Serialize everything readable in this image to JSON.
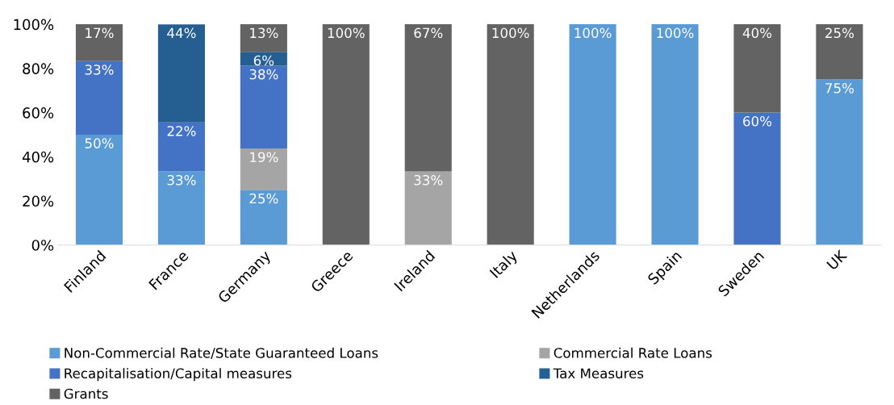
{
  "chart_data": {
    "type": "bar",
    "stacked": true,
    "categories": [
      "Finland",
      "France",
      "Germany",
      "Greece",
      "Ireland",
      "Italy",
      "Netherlands",
      "Spain",
      "Sweden",
      "UK"
    ],
    "ylim": [
      0,
      100
    ],
    "yticks": [
      {
        "value": 0,
        "label": "0%"
      },
      {
        "value": 20,
        "label": "20%"
      },
      {
        "value": 40,
        "label": "40%"
      },
      {
        "value": 60,
        "label": "60%"
      },
      {
        "value": 80,
        "label": "80%"
      },
      {
        "value": 100,
        "label": "100%"
      }
    ],
    "grid": false,
    "legend": "bottom",
    "series": [
      {
        "name": "Non-Commercial Rate/State Guaranteed Loans",
        "color": "#5b9bd5",
        "values": [
          50,
          33.33,
          25,
          null,
          null,
          null,
          100,
          100,
          null,
          75
        ],
        "value_labels": [
          "50%",
          "33%",
          "25%",
          null,
          null,
          null,
          "100%",
          "100%",
          null,
          "75%"
        ]
      },
      {
        "name": "Commercial Rate Loans",
        "color": "#a5a5a5",
        "values": [
          null,
          null,
          18.75,
          null,
          33.33,
          null,
          null,
          null,
          null,
          null
        ],
        "value_labels": [
          null,
          null,
          "19%",
          null,
          "33%",
          null,
          null,
          null,
          null,
          null
        ]
      },
      {
        "name": "Recapitalisation/Capital measures",
        "color": "#4472c4",
        "values": [
          33.33,
          22.22,
          37.5,
          null,
          null,
          null,
          null,
          null,
          60,
          null
        ],
        "value_labels": [
          "33%",
          "22%",
          "38%",
          null,
          null,
          null,
          null,
          null,
          "60%",
          null
        ]
      },
      {
        "name": "Tax Measures",
        "color": "#255e91",
        "values": [
          null,
          44.44,
          6.25,
          null,
          null,
          null,
          null,
          null,
          null,
          null
        ],
        "value_labels": [
          null,
          "44%",
          "6%",
          null,
          null,
          null,
          null,
          null,
          null,
          null
        ]
      },
      {
        "name": "Grants",
        "color": "#636363",
        "values": [
          16.67,
          null,
          12.5,
          100,
          66.67,
          100,
          null,
          null,
          40,
          25
        ],
        "value_labels": [
          "17%",
          null,
          "13%",
          "100%",
          "67%",
          "100%",
          null,
          null,
          "40%",
          "25%"
        ]
      }
    ]
  }
}
